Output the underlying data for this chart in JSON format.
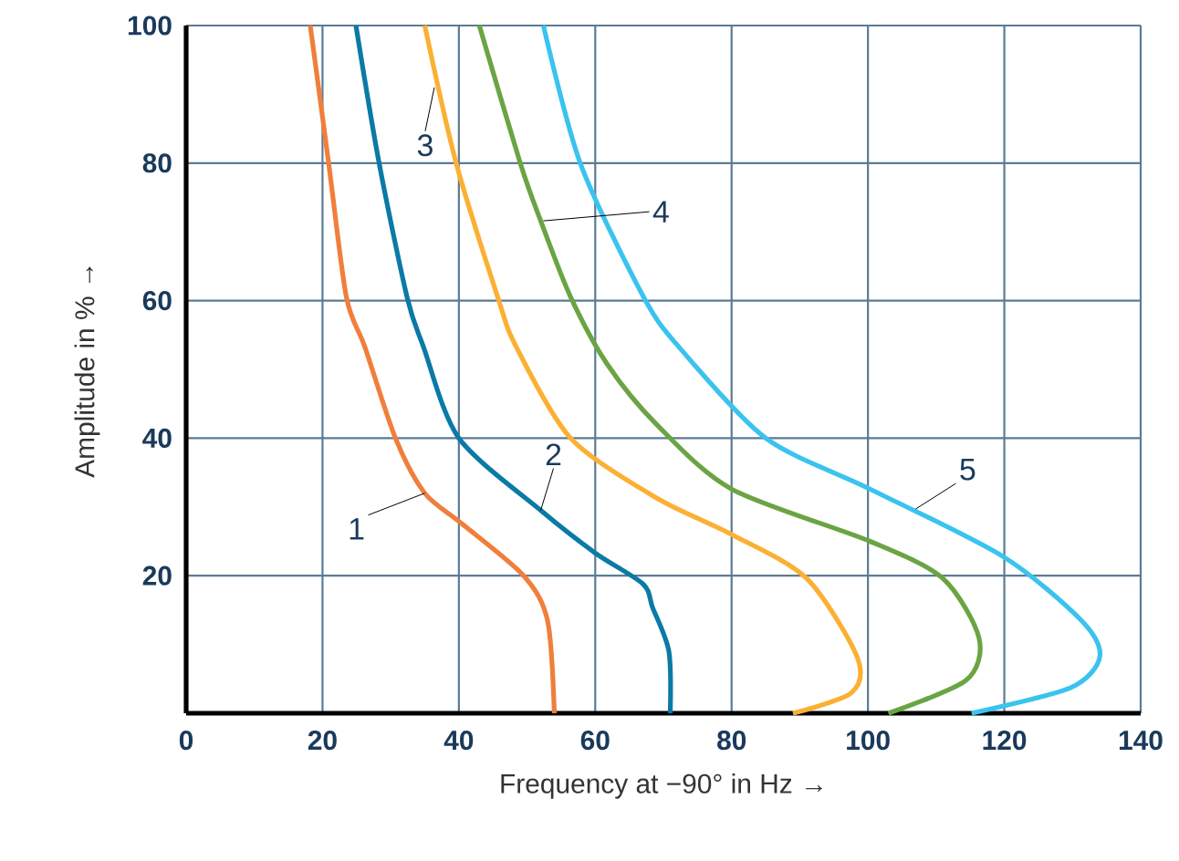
{
  "chart_data": {
    "type": "line",
    "xlabel": "Frequency at −90° in Hz →",
    "ylabel": "Amplitude in % →",
    "xlim": [
      0,
      140
    ],
    "ylim": [
      0,
      100
    ],
    "xticks": [
      0,
      20,
      40,
      60,
      80,
      100,
      120,
      140
    ],
    "yticks": [
      {
        "value": 0,
        "label": null
      },
      20,
      40,
      60,
      80,
      100
    ],
    "grid": true,
    "series": [
      {
        "color": "#f07f3c",
        "x": [
          18.2,
          20.9,
          23.5,
          26.2,
          30.7,
          35,
          40.4,
          49.5,
          53,
          54
        ],
        "values": [
          100,
          80,
          60.5,
          53.3,
          40,
          32,
          27.6,
          20,
          13.5,
          0
        ]
      },
      {
        "color": "#0a7aa6",
        "x": [
          24.9,
          28.3,
          32.4,
          34.8,
          40,
          52,
          60,
          67,
          68.4,
          70.8,
          71
        ],
        "values": [
          100,
          80,
          60.5,
          53.3,
          40,
          29.5,
          23.3,
          18.8,
          15.4,
          9,
          0
        ]
      },
      {
        "color": "#fbb034",
        "x": [
          35,
          39.6,
          45.7,
          48.4,
          56.4,
          69,
          80,
          91,
          98.4,
          97.6,
          89
        ],
        "values": [
          100,
          80,
          60.5,
          53.3,
          40,
          31.3,
          26,
          19.6,
          8.2,
          3,
          0
        ]
      },
      {
        "color": "#6aa443",
        "x": [
          43,
          49,
          52,
          56.4,
          61.8,
          69,
          80,
          100.3,
          111,
          116.3,
          114.4,
          103
        ],
        "values": [
          100,
          80,
          71.6,
          60.5,
          50.7,
          42,
          32.6,
          25,
          19.6,
          10.9,
          4.8,
          0
        ]
      },
      {
        "color": "#3ac3ef",
        "x": [
          52.4,
          57.8,
          67.1,
          72.5,
          85,
          100.3,
          119.8,
          131.3,
          134,
          129.7,
          115.2
        ],
        "values": [
          100,
          80,
          60.5,
          53,
          40,
          32.6,
          22.8,
          13.5,
          8.2,
          3.7,
          0
        ]
      }
    ],
    "annotations": [
      {
        "text": "1",
        "x": 35,
        "y": 32
      },
      {
        "text": "2",
        "x": 52,
        "y": 29.5
      },
      {
        "text": "3",
        "x": 36.4,
        "y": 91
      },
      {
        "text": "4",
        "x": 52.4,
        "y": 71.6
      },
      {
        "text": "5",
        "x": 107,
        "y": 29.7
      }
    ]
  }
}
